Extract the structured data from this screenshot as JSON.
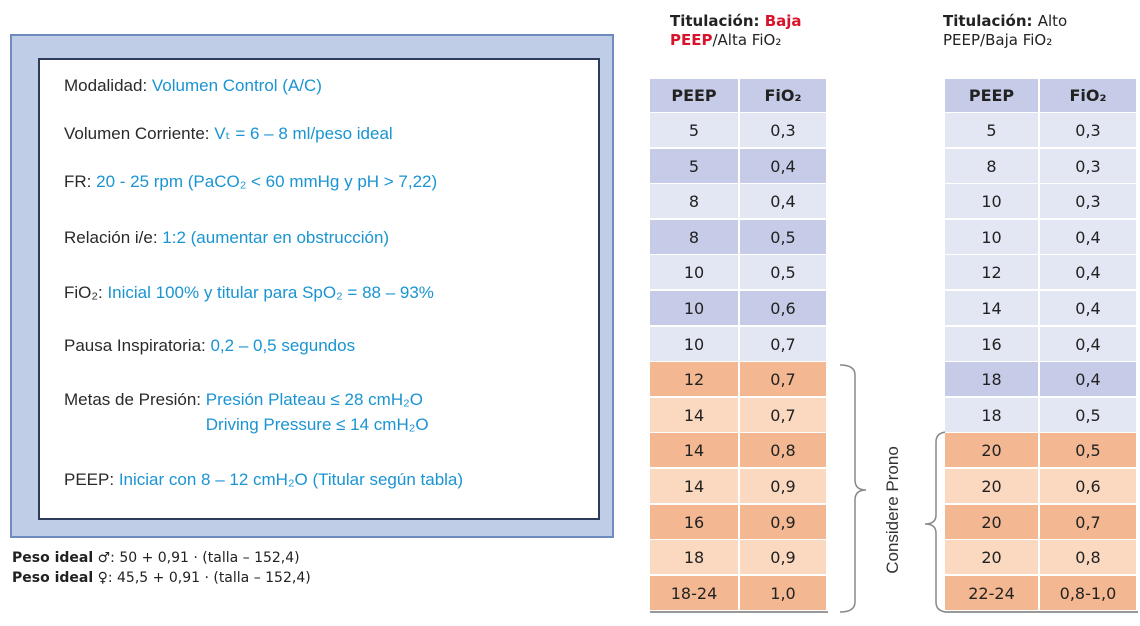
{
  "panel": {
    "items": [
      {
        "label": "Modalidad: ",
        "value": "Volumen Control (A/C)"
      },
      {
        "label": "Volumen Corriente: ",
        "value": "Vₜ = 6 – 8 ml/peso ideal"
      },
      {
        "label": "FR: ",
        "value": "20 - 25 rpm (PaCO₂ < 60 mmHg y pH > 7,22)"
      },
      {
        "label": "Relación i/e: ",
        "value": "1:2 (aumentar en obstrucción)"
      },
      {
        "label": "FiO₂: ",
        "value": "Inicial 100% y titular para SpO₂ = 88 – 93%"
      },
      {
        "label": "Pausa Inspiratoria: ",
        "value": "0,2 – 0,5 segundos"
      },
      {
        "label": "Metas de Presión: ",
        "value": "Presión Plateau ≤ 28 cmH₂O",
        "value2": "Driving Pressure ≤ 14 cmH₂O"
      },
      {
        "label": "PEEP: ",
        "value": "Iniciar con 8 – 12 cmH₂O (Titular según tabla)"
      }
    ],
    "formulas": [
      {
        "label": "Peso ideal",
        "text": " ♂: 50 + 0,91 · (talla – 152,4)"
      },
      {
        "label": "Peso ideal",
        "text": " ♀: 45,5 + 0,91 · (talla – 152,4)"
      }
    ]
  },
  "tables": [
    {
      "title": {
        "part1": "Titulación: ",
        "part2": "Baja",
        "part3": "PEEP",
        "part4": "/Alta FiO₂"
      },
      "header": [
        "PEEP",
        "FiO₂"
      ],
      "rows": [
        [
          "5",
          "0,3"
        ],
        [
          "5",
          "0,4"
        ],
        [
          "8",
          "0,4"
        ],
        [
          "8",
          "0,5"
        ],
        [
          "10",
          "0,5"
        ],
        [
          "10",
          "0,6"
        ],
        [
          "10",
          "0,7"
        ],
        [
          "12",
          "0,7"
        ],
        [
          "14",
          "0,7"
        ],
        [
          "14",
          "0,8"
        ],
        [
          "14",
          "0,9"
        ],
        [
          "16",
          "0,9"
        ],
        [
          "18",
          "0,9"
        ],
        [
          "18-24",
          "1,0"
        ]
      ],
      "row_colors": [
        "#e3e7f4",
        "#c6cce8",
        "#e3e7f4",
        "#c6cce8",
        "#e3e7f4",
        "#c6cce8",
        "#e3e7f4",
        "#f3b892",
        "#fbd8c0",
        "#f3b892",
        "#fbd8c0",
        "#f3b892",
        "#fbd8c0",
        "#f3b892"
      ]
    },
    {
      "title": {
        "part1": "Titulación: ",
        "part2": "Alto",
        "part3": "PEEP/Baja FiO₂"
      },
      "header": [
        "PEEP",
        "FiO₂"
      ],
      "rows": [
        [
          "5",
          "0,3"
        ],
        [
          "8",
          "0,3"
        ],
        [
          "10",
          "0,3"
        ],
        [
          "10",
          "0,4"
        ],
        [
          "12",
          "0,4"
        ],
        [
          "14",
          "0,4"
        ],
        [
          "16",
          "0,4"
        ],
        [
          "18",
          "0,4"
        ],
        [
          "18",
          "0,5"
        ],
        [
          "20",
          "0,5"
        ],
        [
          "20",
          "0,6"
        ],
        [
          "20",
          "0,7"
        ],
        [
          "20",
          "0,8"
        ],
        [
          "22-24",
          "0,8-1,0"
        ]
      ],
      "row_colors": [
        "#e3e7f4",
        "#e3e7f4",
        "#e3e7f4",
        "#e3e7f4",
        "#e3e7f4",
        "#e3e7f4",
        "#e3e7f4",
        "#c6cce8",
        "#e3e7f4",
        "#f3b892",
        "#fbd8c0",
        "#f3b892",
        "#fbd8c0",
        "#f3b892"
      ]
    }
  ],
  "note": "Considere Prono"
}
